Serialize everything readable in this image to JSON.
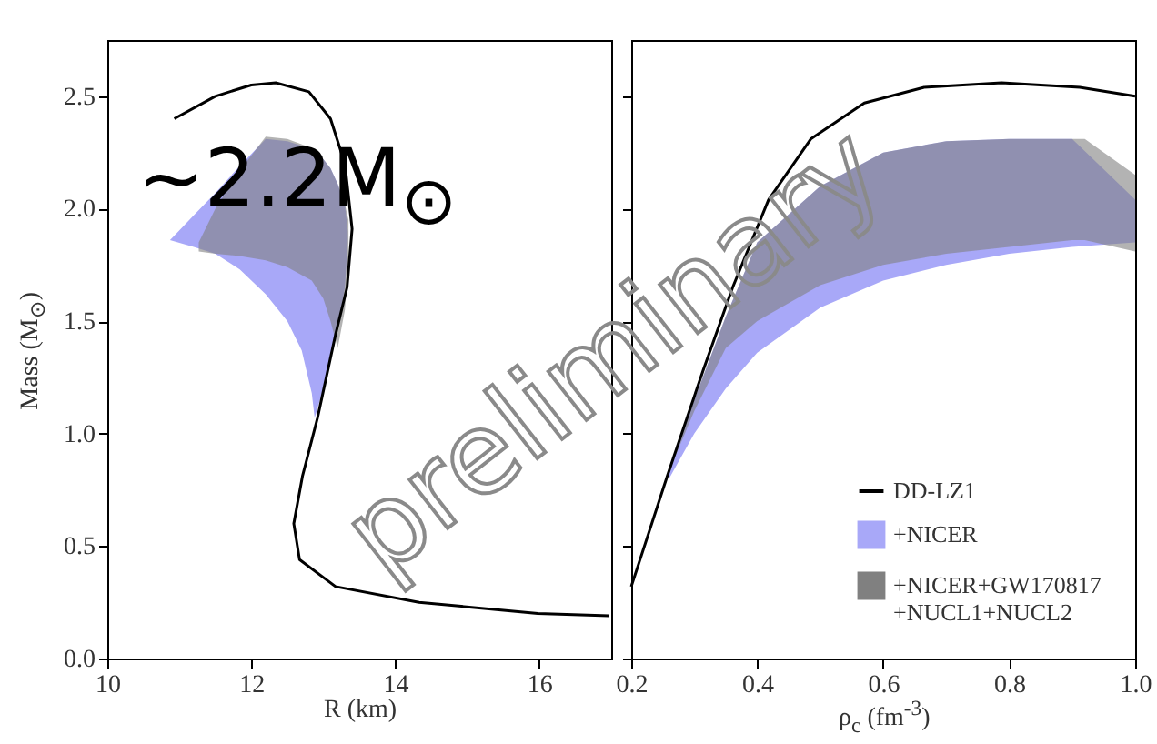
{
  "chart_data": [
    {
      "type": "line",
      "xlabel": "R (km)",
      "ylabel": "Mass (M$_{⊙}$)",
      "xlim": [
        10,
        17
      ],
      "ylim": [
        0,
        2.75
      ],
      "xticks": [
        10,
        12,
        14,
        16
      ],
      "yticks": [
        {
          "value": 0,
          "label": "0.0"
        },
        {
          "value": 0.5,
          "label": "0.5"
        },
        {
          "value": 1,
          "label": "1.0"
        },
        {
          "value": 1.5,
          "label": "1.5"
        },
        {
          "value": 2,
          "label": "2.0"
        },
        {
          "value": 2.5,
          "label": "2.5"
        }
      ],
      "annotations": [
        "~2.2M$_{⊙}$",
        "preliminary"
      ],
      "series": [
        {
          "color": "#000000",
          "x": [
            10.93,
            11.5,
            12.0,
            12.34,
            12.8,
            13.1,
            13.3,
            13.4,
            13.33,
            13.17,
            12.92,
            12.71,
            12.59,
            12.67,
            13.17,
            14.33,
            15.98,
            16.97
          ],
          "values": [
            2.4,
            2.5,
            2.55,
            2.56,
            2.52,
            2.4,
            2.2,
            1.91,
            1.65,
            1.44,
            1.07,
            0.81,
            0.6,
            0.44,
            0.32,
            0.25,
            0.2,
            0.19
          ]
        },
        {
          "type": "area",
          "color": "#a8a8f8",
          "x": [
            10.87,
            11.2,
            11.5,
            11.84,
            12.2,
            12.5,
            12.7,
            12.84,
            12.88,
            13.0,
            13.1,
            13.2,
            13.3,
            13.34
          ],
          "values": [
            null,
            null,
            null,
            null,
            null,
            null,
            null,
            null,
            null,
            null,
            null,
            null,
            null,
            null
          ],
          "lower": [
            1.86,
            1.83,
            1.8,
            1.73,
            1.62,
            1.5,
            1.37,
            1.18,
            1.07,
            1.2,
            1.32,
            1.47,
            1.65,
            1.85
          ],
          "upper": [
            1.86,
            1.97,
            2.07,
            2.19,
            2.31,
            2.3,
            2.28,
            2.26,
            2.25,
            2.22,
            2.18,
            2.11,
            2.02,
            1.9
          ]
        },
        {
          "type": "area",
          "color": "#808080",
          "x": [
            11.27,
            11.5,
            11.84,
            12.2,
            12.5,
            12.84,
            13.0,
            13.1,
            13.2,
            13.3,
            13.35
          ],
          "values": [
            null,
            null,
            null,
            null,
            null,
            null,
            null,
            null,
            null,
            null,
            null
          ],
          "lower": [
            1.81,
            1.8,
            1.79,
            1.77,
            1.74,
            1.68,
            1.6,
            1.5,
            1.38,
            1.55,
            1.75
          ],
          "upper": [
            1.85,
            2.0,
            2.17,
            2.32,
            2.31,
            2.27,
            2.22,
            2.18,
            2.11,
            2.02,
            1.95
          ]
        }
      ]
    },
    {
      "type": "line",
      "xlabel": "ρ$_{c}$ (fm$^{-3}$)",
      "xlim": [
        0.2,
        1.0
      ],
      "ylim": [
        0,
        2.75
      ],
      "xticks": [
        0.2,
        0.4,
        0.6,
        0.8,
        {
          "value": 1,
          "label": "1.0"
        }
      ],
      "yticks": [
        {
          "value": 0,
          "label": null
        },
        {
          "value": 0.5,
          "label": null
        },
        {
          "value": 1,
          "label": null
        },
        {
          "value": 1.5,
          "label": null
        },
        {
          "value": 2,
          "label": null
        },
        {
          "value": 2.5,
          "label": null
        }
      ],
      "tick_labels": "x",
      "legend": "bottom right",
      "series": [
        {
          "name": "DD-LZ1",
          "color": "#000000",
          "x": [
            0.2,
            0.257,
            0.314,
            0.361,
            0.418,
            0.485,
            0.57,
            0.665,
            0.788,
            0.912,
            1.0
          ],
          "values": [
            0.32,
            0.81,
            1.28,
            1.65,
            2.04,
            2.31,
            2.47,
            2.54,
            2.56,
            2.54,
            2.5
          ]
        },
        {
          "name": "+NICER",
          "type": "area",
          "color": "#a8a8f8",
          "x": [
            0.26,
            0.3,
            0.35,
            0.4,
            0.5,
            0.6,
            0.7,
            0.8,
            0.9,
            1.0
          ],
          "values": [
            null,
            null,
            null,
            null,
            null,
            null,
            null,
            null,
            null,
            null
          ],
          "lower": [
            0.8,
            1.0,
            1.2,
            1.36,
            1.56,
            1.68,
            1.75,
            1.8,
            1.83,
            1.85
          ],
          "upper": [
            0.83,
            1.15,
            1.52,
            1.85,
            2.1,
            2.25,
            2.3,
            2.31,
            2.31,
            2.04
          ]
        },
        {
          "name": "+NICER+GW170817\n+NUCL1+NUCL2",
          "type": "area",
          "color": "#808080",
          "x": [
            0.27,
            0.3,
            0.35,
            0.4,
            0.5,
            0.6,
            0.7,
            0.8,
            0.9,
            0.92,
            1.0
          ],
          "values": [
            null,
            null,
            null,
            null,
            null,
            null,
            null,
            null,
            null,
            null,
            null
          ],
          "lower": [
            0.9,
            1.1,
            1.38,
            1.5,
            1.66,
            1.75,
            1.8,
            1.83,
            1.86,
            1.86,
            1.81
          ],
          "upper": [
            0.93,
            1.15,
            1.52,
            1.85,
            2.1,
            2.25,
            2.3,
            2.31,
            2.31,
            2.31,
            2.15
          ]
        }
      ]
    }
  ]
}
